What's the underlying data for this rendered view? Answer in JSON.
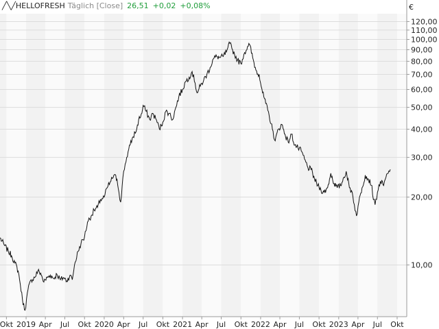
{
  "header": {
    "symbol": "HELLOFRESH",
    "interval": "Täglich [Close]",
    "last": "26,51",
    "change": "+0,02",
    "change_pct": "+0,08%",
    "change_color": "#1f9d3a"
  },
  "chart_data": {
    "type": "line",
    "currency_label": "€",
    "y_scale": "log",
    "ylim": [
      5.9,
      130
    ],
    "y_ticks": [
      {
        "value": 10,
        "label": "10,00"
      },
      {
        "value": 20,
        "label": "20,00"
      },
      {
        "value": 30,
        "label": "30,00"
      },
      {
        "value": 40,
        "label": "40,00"
      },
      {
        "value": 50,
        "label": "50,00"
      },
      {
        "value": 60,
        "label": "60,00"
      },
      {
        "value": 70,
        "label": "70,00"
      },
      {
        "value": 80,
        "label": "80,00"
      },
      {
        "value": 90,
        "label": "90,00"
      },
      {
        "value": 100,
        "label": "100,00"
      },
      {
        "value": 110,
        "label": "110,00"
      },
      {
        "value": 120,
        "label": "120,00"
      }
    ],
    "xlim": [
      "2018-09-01",
      "2023-11-15"
    ],
    "x_ticks": [
      {
        "date": "2018-10-01",
        "label": "Okt"
      },
      {
        "date": "2019-01-01",
        "label": "2019"
      },
      {
        "date": "2019-04-01",
        "label": "Apr"
      },
      {
        "date": "2019-07-01",
        "label": "Jul"
      },
      {
        "date": "2019-10-01",
        "label": "Okt"
      },
      {
        "date": "2020-01-01",
        "label": "2020"
      },
      {
        "date": "2020-04-01",
        "label": "Apr"
      },
      {
        "date": "2020-07-01",
        "label": "Jul"
      },
      {
        "date": "2020-10-01",
        "label": "Okt"
      },
      {
        "date": "2021-01-01",
        "label": "2021"
      },
      {
        "date": "2021-04-01",
        "label": "Apr"
      },
      {
        "date": "2021-07-01",
        "label": "Jul"
      },
      {
        "date": "2021-10-01",
        "label": "Okt"
      },
      {
        "date": "2022-01-01",
        "label": "2022"
      },
      {
        "date": "2022-04-01",
        "label": "Apr"
      },
      {
        "date": "2022-07-01",
        "label": "Jul"
      },
      {
        "date": "2022-10-01",
        "label": "Okt"
      },
      {
        "date": "2023-01-01",
        "label": "2023"
      },
      {
        "date": "2023-04-01",
        "label": "Apr"
      },
      {
        "date": "2023-07-01",
        "label": "Jul"
      },
      {
        "date": "2023-10-01",
        "label": "Okt"
      }
    ],
    "shading": "alternating quarters",
    "grid": true,
    "series": [
      {
        "color": "#111111",
        "points": [
          [
            "2018-09-01",
            13.2
          ],
          [
            "2018-09-20",
            12.3
          ],
          [
            "2018-10-10",
            11.5
          ],
          [
            "2018-10-25",
            11.0
          ],
          [
            "2018-11-10",
            10.2
          ],
          [
            "2018-11-25",
            9.4
          ],
          [
            "2018-12-05",
            8.2
          ],
          [
            "2018-12-15",
            7.0
          ],
          [
            "2018-12-27",
            6.3
          ],
          [
            "2019-01-10",
            7.8
          ],
          [
            "2019-01-25",
            8.6
          ],
          [
            "2019-02-10",
            8.8
          ],
          [
            "2019-02-25",
            9.4
          ],
          [
            "2019-03-10",
            9.2
          ],
          [
            "2019-03-25",
            8.4
          ],
          [
            "2019-04-10",
            8.8
          ],
          [
            "2019-04-25",
            9.0
          ],
          [
            "2019-05-10",
            8.7
          ],
          [
            "2019-05-25",
            9.1
          ],
          [
            "2019-06-10",
            8.6
          ],
          [
            "2019-06-25",
            8.8
          ],
          [
            "2019-07-10",
            8.5
          ],
          [
            "2019-07-25",
            9.0
          ],
          [
            "2019-08-05",
            8.6
          ],
          [
            "2019-08-15",
            10.0
          ],
          [
            "2019-09-01",
            11.5
          ],
          [
            "2019-09-15",
            12.5
          ],
          [
            "2019-10-01",
            13.3
          ],
          [
            "2019-10-15",
            15.5
          ],
          [
            "2019-11-01",
            16.5
          ],
          [
            "2019-11-15",
            17.5
          ],
          [
            "2019-12-01",
            18.0
          ],
          [
            "2019-12-15",
            19.5
          ],
          [
            "2020-01-01",
            20.0
          ],
          [
            "2020-01-15",
            22.0
          ],
          [
            "2020-02-01",
            23.5
          ],
          [
            "2020-02-15",
            25.0
          ],
          [
            "2020-03-01",
            24.0
          ],
          [
            "2020-03-10",
            21.0
          ],
          [
            "2020-03-18",
            19.0
          ],
          [
            "2020-04-01",
            26.0
          ],
          [
            "2020-04-15",
            30.0
          ],
          [
            "2020-05-01",
            34.0
          ],
          [
            "2020-05-15",
            37.0
          ],
          [
            "2020-06-01",
            40.0
          ],
          [
            "2020-06-10",
            44.0
          ],
          [
            "2020-06-25",
            47.0
          ],
          [
            "2020-07-01",
            51.0
          ],
          [
            "2020-07-15",
            48.0
          ],
          [
            "2020-08-01",
            44.0
          ],
          [
            "2020-08-15",
            47.0
          ],
          [
            "2020-09-01",
            44.0
          ],
          [
            "2020-09-15",
            40.0
          ],
          [
            "2020-10-01",
            43.0
          ],
          [
            "2020-10-15",
            48.0
          ],
          [
            "2020-11-01",
            47.0
          ],
          [
            "2020-11-15",
            44.0
          ],
          [
            "2020-12-01",
            50.0
          ],
          [
            "2020-12-15",
            56.0
          ],
          [
            "2021-01-01",
            60.0
          ],
          [
            "2021-01-15",
            65.0
          ],
          [
            "2021-02-01",
            68.0
          ],
          [
            "2021-02-15",
            72.0
          ],
          [
            "2021-03-01",
            64.0
          ],
          [
            "2021-03-10",
            58.0
          ],
          [
            "2021-03-25",
            62.0
          ],
          [
            "2021-04-10",
            66.0
          ],
          [
            "2021-04-25",
            70.0
          ],
          [
            "2021-05-10",
            75.0
          ],
          [
            "2021-05-25",
            82.0
          ],
          [
            "2021-06-10",
            84.0
          ],
          [
            "2021-06-25",
            83.0
          ],
          [
            "2021-07-10",
            84.0
          ],
          [
            "2021-07-25",
            88.0
          ],
          [
            "2021-08-01",
            92.0
          ],
          [
            "2021-08-10",
            96.0
          ],
          [
            "2021-08-20",
            91.0
          ],
          [
            "2021-09-01",
            86.0
          ],
          [
            "2021-09-15",
            81.0
          ],
          [
            "2021-10-01",
            78.0
          ],
          [
            "2021-10-15",
            86.0
          ],
          [
            "2021-11-01",
            93.0
          ],
          [
            "2021-11-10",
            95.0
          ],
          [
            "2021-11-25",
            83.0
          ],
          [
            "2021-12-10",
            73.0
          ],
          [
            "2021-12-25",
            70.0
          ],
          [
            "2022-01-10",
            58.0
          ],
          [
            "2022-01-25",
            52.0
          ],
          [
            "2022-02-10",
            46.0
          ],
          [
            "2022-02-25",
            40.0
          ],
          [
            "2022-03-10",
            35.5
          ],
          [
            "2022-03-25",
            40.0
          ],
          [
            "2022-04-10",
            42.0
          ],
          [
            "2022-04-25",
            38.0
          ],
          [
            "2022-05-10",
            35.0
          ],
          [
            "2022-05-25",
            38.0
          ],
          [
            "2022-06-10",
            34.0
          ],
          [
            "2022-06-25",
            33.0
          ],
          [
            "2022-07-10",
            32.0
          ],
          [
            "2022-07-25",
            29.5
          ],
          [
            "2022-08-10",
            27.0
          ],
          [
            "2022-08-25",
            26.5
          ],
          [
            "2022-09-10",
            24.0
          ],
          [
            "2022-09-25",
            22.5
          ],
          [
            "2022-10-10",
            21.5
          ],
          [
            "2022-10-25",
            21.0
          ],
          [
            "2022-11-10",
            22.0
          ],
          [
            "2022-11-25",
            25.5
          ],
          [
            "2022-12-10",
            23.0
          ],
          [
            "2022-12-25",
            22.0
          ],
          [
            "2023-01-10",
            22.5
          ],
          [
            "2023-01-25",
            24.5
          ],
          [
            "2023-02-05",
            26.0
          ],
          [
            "2023-02-20",
            22.0
          ],
          [
            "2023-03-05",
            21.0
          ],
          [
            "2023-03-15",
            18.5
          ],
          [
            "2023-03-25",
            16.5
          ],
          [
            "2023-04-05",
            19.0
          ],
          [
            "2023-04-20",
            22.0
          ],
          [
            "2023-05-05",
            25.0
          ],
          [
            "2023-05-20",
            24.0
          ],
          [
            "2023-06-05",
            22.5
          ],
          [
            "2023-06-12",
            19.5
          ],
          [
            "2023-06-20",
            18.5
          ],
          [
            "2023-07-01",
            21.0
          ],
          [
            "2023-07-15",
            23.5
          ],
          [
            "2023-07-30",
            22.5
          ],
          [
            "2023-08-10",
            24.5
          ],
          [
            "2023-08-20",
            25.5
          ],
          [
            "2023-08-30",
            26.51
          ]
        ]
      }
    ]
  }
}
